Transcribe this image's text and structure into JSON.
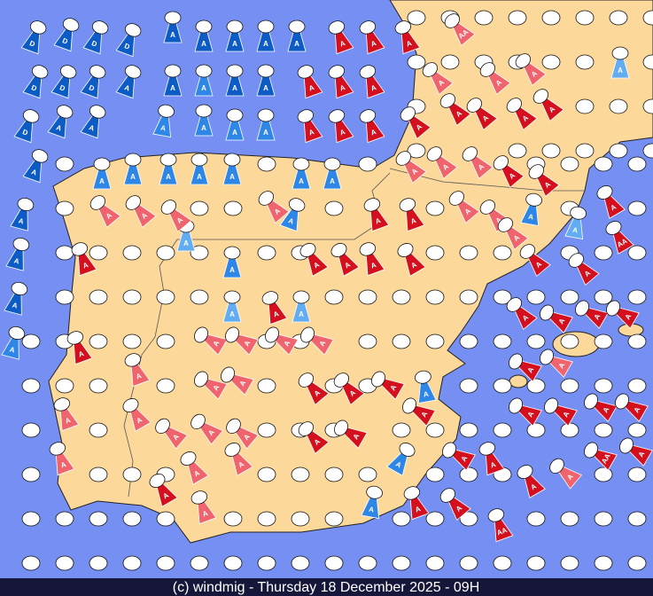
{
  "footer": "(c) windmig - Thursday 18 December 2025 - 09H",
  "palette": {
    "dark": "#0d5bc4",
    "blue": "#2e86e6",
    "light": "#62adf2",
    "red": "#d4101e",
    "pink": "#f0646e"
  },
  "marker_labels": [
    "D",
    "D",
    "D",
    "D",
    "D",
    "D",
    "D",
    "A",
    "D",
    "A",
    "A",
    "A",
    "A",
    "A",
    "A",
    "A",
    "A",
    "A",
    "A",
    "A",
    "A",
    "A",
    "A",
    "A",
    "A",
    "A",
    "A",
    "A",
    "A",
    "A",
    "A",
    "A",
    "A",
    "A",
    "A",
    "A",
    "A",
    "A",
    "A",
    "A",
    "A",
    "A",
    "A",
    "A",
    "A",
    "A",
    "A",
    "A",
    "A",
    "A",
    "A",
    "A",
    "A",
    "A",
    "A",
    "A",
    "A",
    "A",
    "A",
    "A",
    "A",
    "A",
    "A",
    "A",
    "A",
    "A",
    "A",
    "A",
    "A",
    "A",
    "A",
    "A",
    "A",
    "A",
    "A",
    "A",
    "A",
    "A",
    "A",
    "A",
    "A",
    "A",
    "A",
    "A",
    "AA",
    "A",
    "AA",
    "A",
    "A",
    "AA",
    "A",
    "A",
    "A",
    "A",
    "A",
    "A",
    "A",
    "A",
    "A",
    "A",
    "A",
    "A",
    "A",
    "A",
    "A",
    "A",
    "A",
    "A",
    "A",
    "A",
    "A",
    "A",
    "A",
    "A",
    "A",
    "A",
    "A",
    "A",
    "A",
    "A",
    "A",
    "A",
    "A",
    "A",
    "A",
    "A",
    "A",
    "A",
    "A",
    "A",
    "A",
    "AA"
  ]
}
